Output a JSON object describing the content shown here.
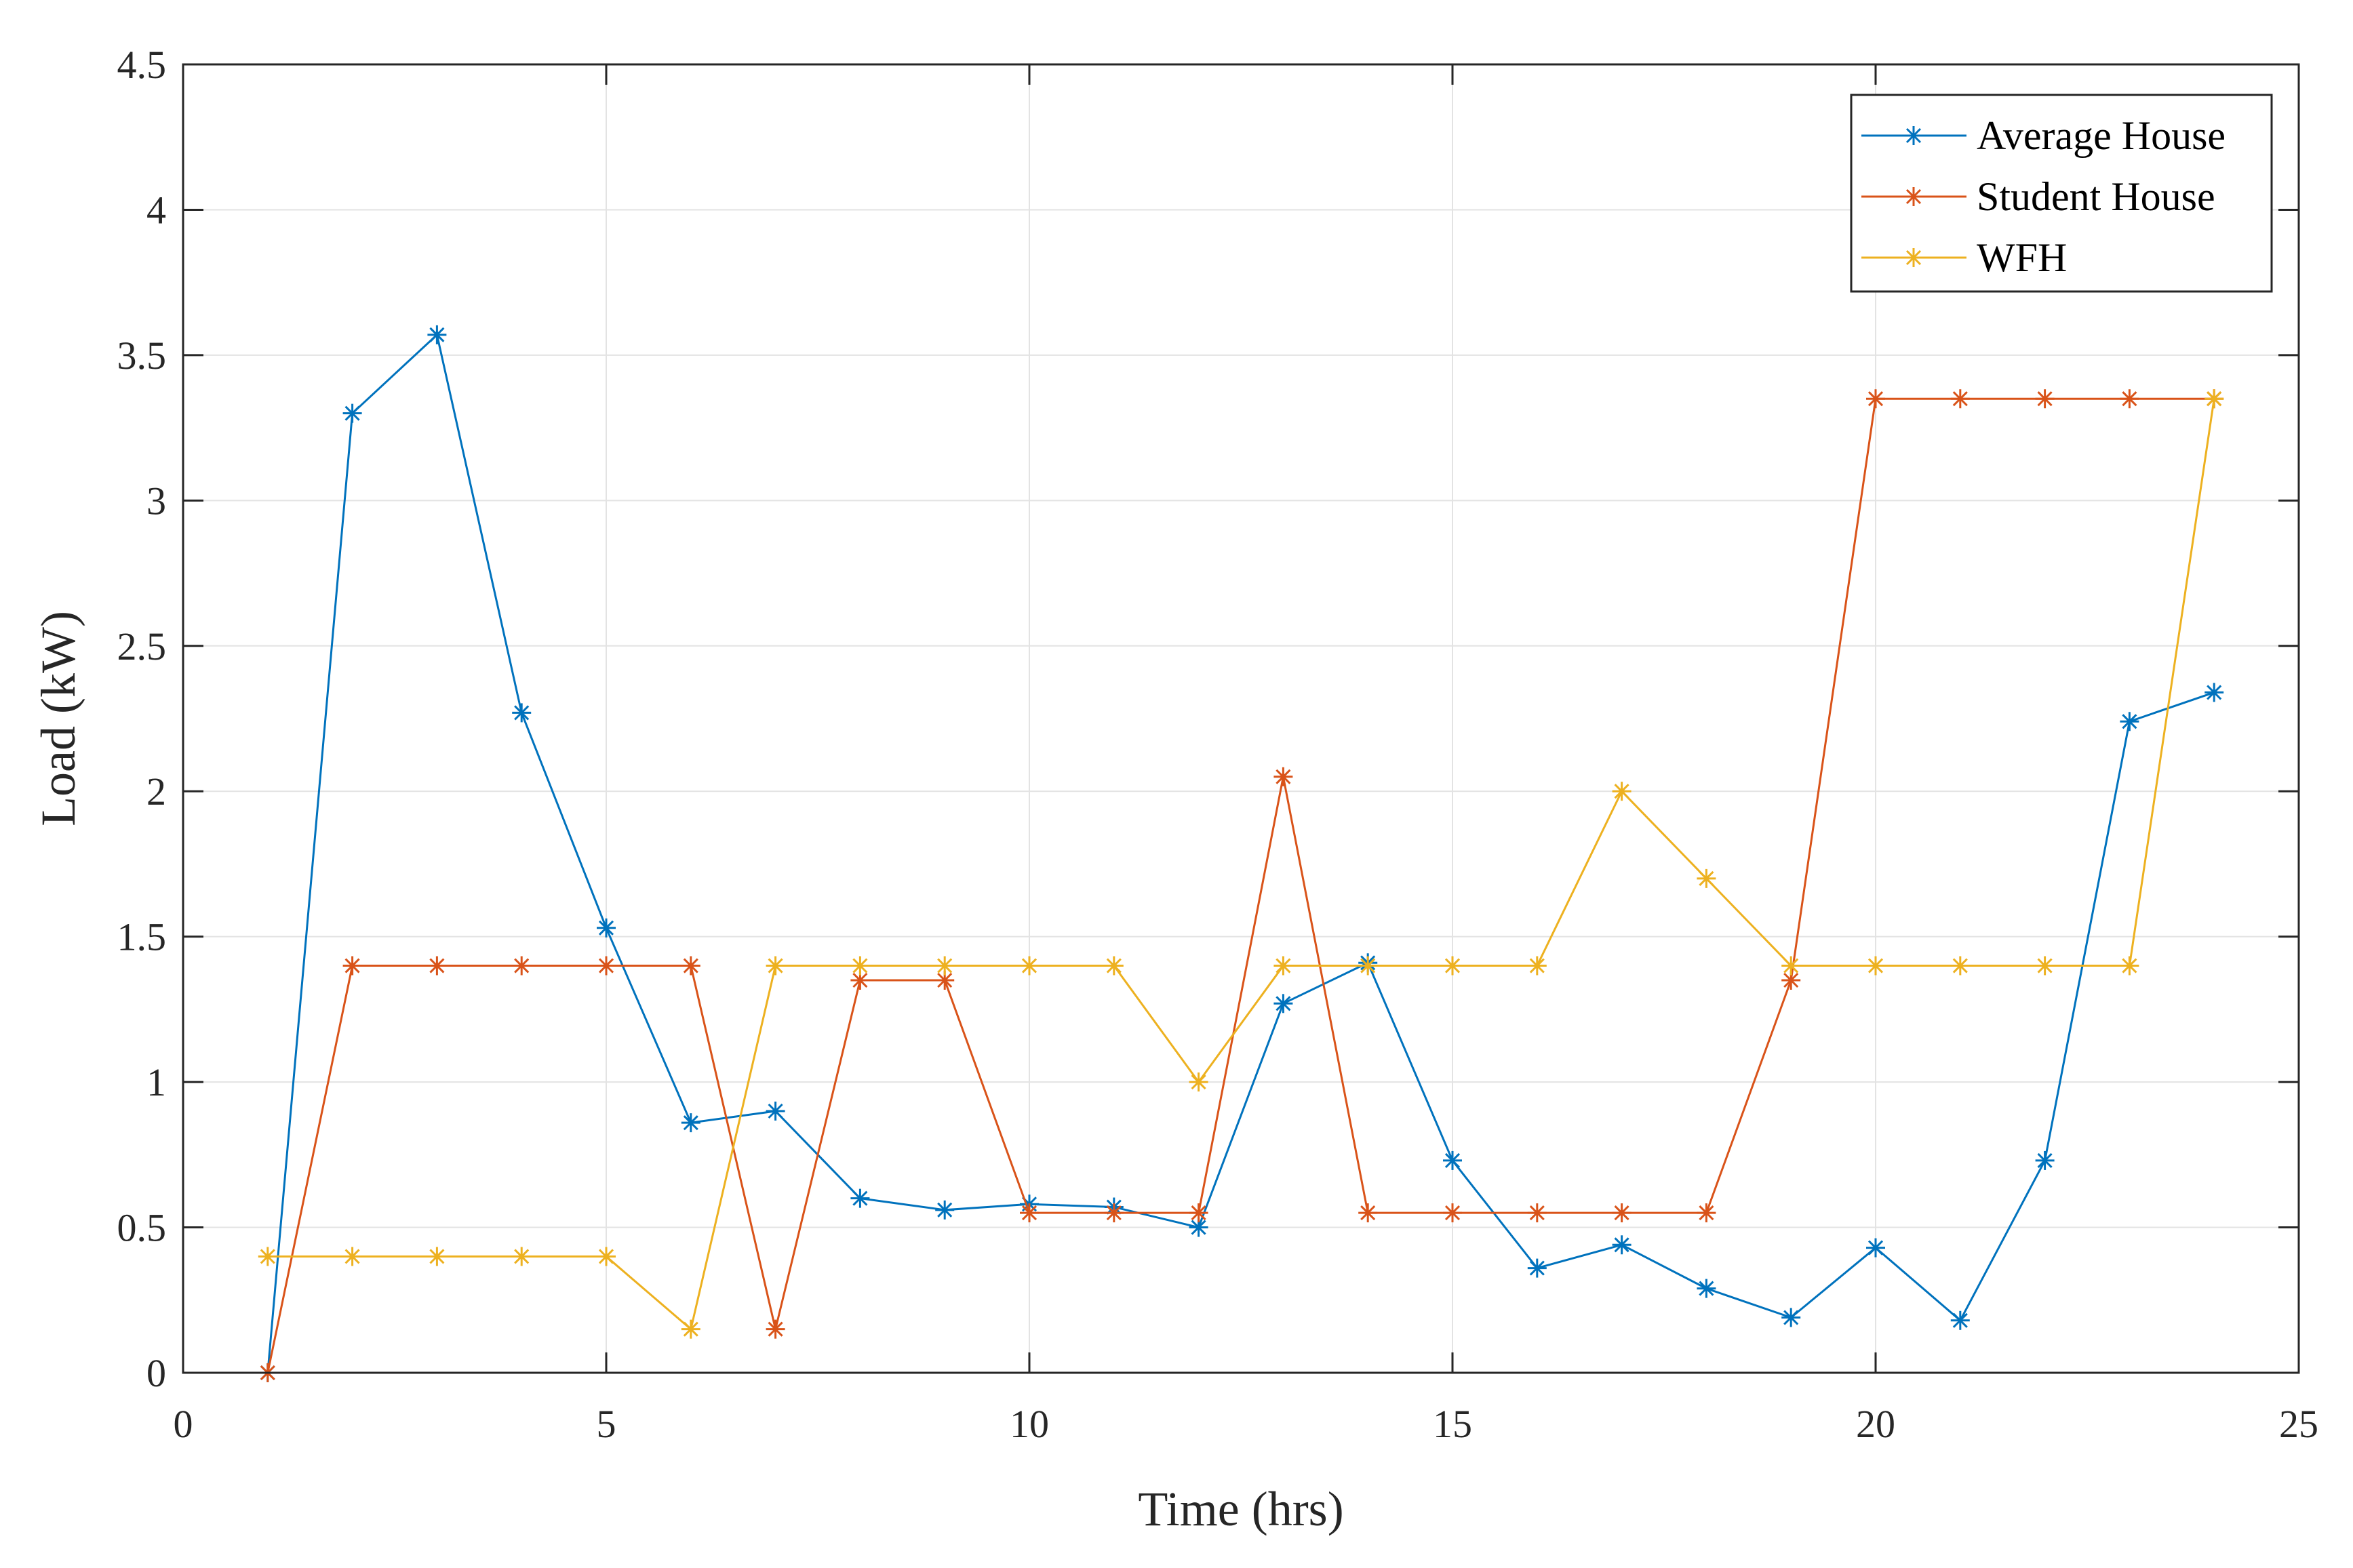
{
  "chart_data": {
    "type": "line",
    "xlabel": "Time (hrs)",
    "ylabel": "Load (kW)",
    "xlim": [
      0,
      25
    ],
    "ylim": [
      0,
      4.5
    ],
    "xticks": [
      0,
      5,
      10,
      15,
      20,
      25
    ],
    "yticks": [
      0,
      0.5,
      1,
      1.5,
      2,
      2.5,
      3,
      3.5,
      4,
      4.5
    ],
    "xtick_labels": [
      "0",
      "5",
      "10",
      "15",
      "20",
      "25"
    ],
    "ytick_labels": [
      "0",
      "0.5",
      "1",
      "1.5",
      "2",
      "2.5",
      "3",
      "3.5",
      "4",
      "4.5"
    ],
    "grid": true,
    "legend_position": "top-right",
    "marker": "asterisk",
    "x": [
      1,
      2,
      3,
      4,
      5,
      6,
      7,
      8,
      9,
      10,
      11,
      12,
      13,
      14,
      15,
      16,
      17,
      18,
      19,
      20,
      21,
      22,
      23,
      24
    ],
    "series": [
      {
        "name": "Average House",
        "color": "#0072BD",
        "values": [
          0,
          3.3,
          3.57,
          2.27,
          1.53,
          0.86,
          0.9,
          0.6,
          0.56,
          0.58,
          0.57,
          0.5,
          1.27,
          1.41,
          0.73,
          0.36,
          0.44,
          0.29,
          0.19,
          0.43,
          0.18,
          0.73,
          2.24,
          2.34
        ]
      },
      {
        "name": "Student House",
        "color": "#D95319",
        "values": [
          0,
          1.4,
          1.4,
          1.4,
          1.4,
          1.4,
          0.15,
          1.35,
          1.35,
          0.55,
          0.55,
          0.55,
          2.05,
          0.55,
          0.55,
          0.55,
          0.55,
          0.55,
          1.35,
          3.35,
          3.35,
          3.35,
          3.35,
          3.35
        ]
      },
      {
        "name": "WFH",
        "color": "#EDB120",
        "values": [
          0.4,
          0.4,
          0.4,
          0.4,
          0.4,
          0.15,
          1.4,
          1.4,
          1.4,
          1.4,
          1.4,
          1.0,
          1.4,
          1.4,
          1.4,
          1.4,
          2.0,
          1.7,
          1.4,
          1.4,
          1.4,
          1.4,
          1.4,
          3.35
        ]
      }
    ]
  }
}
